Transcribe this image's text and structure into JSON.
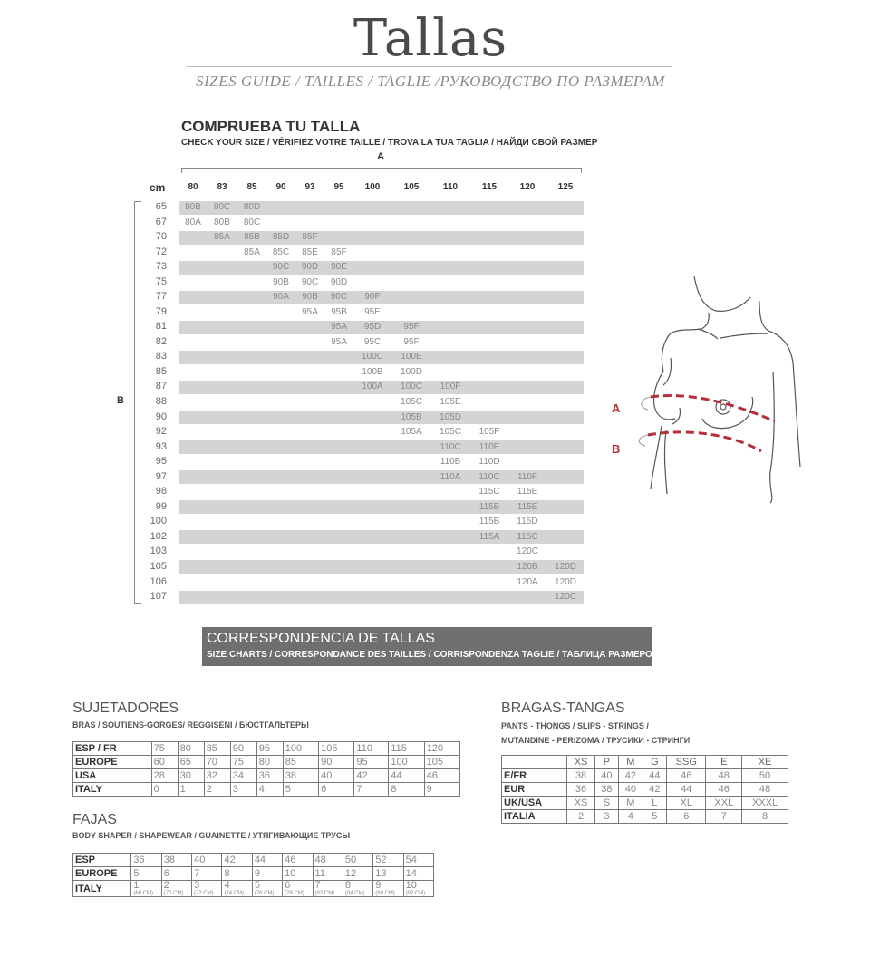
{
  "header": {
    "title": "Tallas",
    "subtitle": "SIZES GUIDE / TAILLES / TAGLIE /РУКОВОДСТВО ПО РАЗМЕРАМ"
  },
  "check_size": {
    "title": "COMPRUEBA TU TALLA",
    "subtitle": "CHECK YOUR SIZE / VÉRIFIEZ VOTRE TAILLE / TROVA LA TUA TAGLIA / НАЙДИ СВОЙ РАЗМЕР",
    "axis_a": "A",
    "axis_b": "B",
    "unit": "cm",
    "columns": [
      "80",
      "83",
      "85",
      "90",
      "93",
      "95",
      "100",
      "105",
      "110",
      "115",
      "120",
      "125"
    ],
    "rows": [
      {
        "b": "65",
        "cells": [
          "80B",
          "80C",
          "80D",
          "",
          "",
          "",
          "",
          "",
          "",
          "",
          "",
          ""
        ]
      },
      {
        "b": "67",
        "cells": [
          "80A",
          "80B",
          "80C",
          "",
          "",
          "",
          "",
          "",
          "",
          "",
          "",
          ""
        ]
      },
      {
        "b": "70",
        "cells": [
          "",
          "85A",
          "85B",
          "85D",
          "85F",
          "",
          "",
          "",
          "",
          "",
          "",
          ""
        ]
      },
      {
        "b": "72",
        "cells": [
          "",
          "",
          "85A",
          "85C",
          "85E",
          "85F",
          "",
          "",
          "",
          "",
          "",
          ""
        ]
      },
      {
        "b": "73",
        "cells": [
          "",
          "",
          "",
          "90C",
          "90D",
          "90E",
          "",
          "",
          "",
          "",
          "",
          ""
        ]
      },
      {
        "b": "75",
        "cells": [
          "",
          "",
          "",
          "90B",
          "90C",
          "90D",
          "",
          "",
          "",
          "",
          "",
          ""
        ]
      },
      {
        "b": "77",
        "cells": [
          "",
          "",
          "",
          "90A",
          "90B",
          "90C",
          "90F",
          "",
          "",
          "",
          "",
          ""
        ]
      },
      {
        "b": "79",
        "cells": [
          "",
          "",
          "",
          "",
          "95A",
          "95B",
          "95E",
          "",
          "",
          "",
          "",
          ""
        ]
      },
      {
        "b": "81",
        "cells": [
          "",
          "",
          "",
          "",
          "",
          "95A",
          "95D",
          "95F",
          "",
          "",
          "",
          ""
        ]
      },
      {
        "b": "82",
        "cells": [
          "",
          "",
          "",
          "",
          "",
          "95A",
          "95C",
          "95F",
          "",
          "",
          "",
          ""
        ]
      },
      {
        "b": "83",
        "cells": [
          "",
          "",
          "",
          "",
          "",
          "",
          "100C",
          "100E",
          "",
          "",
          "",
          ""
        ]
      },
      {
        "b": "85",
        "cells": [
          "",
          "",
          "",
          "",
          "",
          "",
          "100B",
          "100D",
          "",
          "",
          "",
          ""
        ]
      },
      {
        "b": "87",
        "cells": [
          "",
          "",
          "",
          "",
          "",
          "",
          "100A",
          "100C",
          "100F",
          "",
          "",
          ""
        ]
      },
      {
        "b": "88",
        "cells": [
          "",
          "",
          "",
          "",
          "",
          "",
          "",
          "105C",
          "105E",
          "",
          "",
          ""
        ]
      },
      {
        "b": "90",
        "cells": [
          "",
          "",
          "",
          "",
          "",
          "",
          "",
          "105B",
          "105D",
          "",
          "",
          ""
        ]
      },
      {
        "b": "92",
        "cells": [
          "",
          "",
          "",
          "",
          "",
          "",
          "",
          "105A",
          "105C",
          "105F",
          "",
          ""
        ]
      },
      {
        "b": "93",
        "cells": [
          "",
          "",
          "",
          "",
          "",
          "",
          "",
          "",
          "110C",
          "110E",
          "",
          ""
        ]
      },
      {
        "b": "95",
        "cells": [
          "",
          "",
          "",
          "",
          "",
          "",
          "",
          "",
          "110B",
          "110D",
          "",
          ""
        ]
      },
      {
        "b": "97",
        "cells": [
          "",
          "",
          "",
          "",
          "",
          "",
          "",
          "",
          "110A",
          "110C",
          "110F",
          ""
        ]
      },
      {
        "b": "98",
        "cells": [
          "",
          "",
          "",
          "",
          "",
          "",
          "",
          "",
          "",
          "115C",
          "115E",
          ""
        ]
      },
      {
        "b": "99",
        "cells": [
          "",
          "",
          "",
          "",
          "",
          "",
          "",
          "",
          "",
          "115B",
          "115E",
          ""
        ]
      },
      {
        "b": "100",
        "cells": [
          "",
          "",
          "",
          "",
          "",
          "",
          "",
          "",
          "",
          "115B",
          "115D",
          ""
        ]
      },
      {
        "b": "102",
        "cells": [
          "",
          "",
          "",
          "",
          "",
          "",
          "",
          "",
          "",
          "115A",
          "115C",
          ""
        ]
      },
      {
        "b": "103",
        "cells": [
          "",
          "",
          "",
          "",
          "",
          "",
          "",
          "",
          "",
          "",
          "120C",
          ""
        ]
      },
      {
        "b": "105",
        "cells": [
          "",
          "",
          "",
          "",
          "",
          "",
          "",
          "",
          "",
          "",
          "120B",
          "120D"
        ]
      },
      {
        "b": "106",
        "cells": [
          "",
          "",
          "",
          "",
          "",
          "",
          "",
          "",
          "",
          "",
          "120A",
          "120D"
        ]
      },
      {
        "b": "107",
        "cells": [
          "",
          "",
          "",
          "",
          "",
          "",
          "",
          "",
          "",
          "",
          "",
          "120C"
        ]
      }
    ]
  },
  "illustration": {
    "label_a": "A",
    "label_b": "B",
    "line_color": "#b5303a"
  },
  "correspondence": {
    "title": "CORRESPONDENCIA DE TALLAS",
    "subtitle": "SIZE CHARTS / CORRESPONDANCE DES TAILLES / CORRISPONDENZA TAGLIE / ТАБЛИЦА РАЗМЕРОВ",
    "bg_color": "#6f6f72"
  },
  "bras": {
    "title": "SUJETADORES",
    "subtitle": "BRAS / SOUTIENS-GORGES/ REGGISENI / БЮСТГАЛЬТЕРЫ",
    "rows": [
      {
        "label": "ESP / FR",
        "values": [
          "75",
          "80",
          "85",
          "90",
          "95",
          "100",
          "105",
          "110",
          "115",
          "120"
        ]
      },
      {
        "label": "EUROPE",
        "values": [
          "60",
          "65",
          "70",
          "75",
          "80",
          "85",
          "90",
          "95",
          "100",
          "105"
        ]
      },
      {
        "label": "USA",
        "values": [
          "28",
          "30",
          "32",
          "34",
          "36",
          "38",
          "40",
          "42",
          "44",
          "46"
        ]
      },
      {
        "label": "ITALY",
        "values": [
          "0",
          "1",
          "2",
          "3",
          "4",
          "5",
          "6",
          "7",
          "8",
          "9"
        ]
      }
    ]
  },
  "shapers": {
    "title": "FAJAS",
    "subtitle": "BODY SHAPER / SHAPEWEAR / GUAINETTE / УТЯГИВАЮЩИЕ ТРУСЫ",
    "rows": [
      {
        "label": "ESP",
        "values": [
          "36",
          "38",
          "40",
          "42",
          "44",
          "46",
          "48",
          "50",
          "52",
          "54"
        ]
      },
      {
        "label": "EUROPE",
        "values": [
          "5",
          "6",
          "7",
          "8",
          "9",
          "10",
          "11",
          "12",
          "13",
          "14"
        ]
      },
      {
        "label": "ITALY",
        "values": [
          "1",
          "2",
          "3",
          "4",
          "5",
          "6",
          "7",
          "8",
          "9",
          "10"
        ],
        "notes": [
          "(68 CM)",
          "(70 CM)",
          "(72 CM)",
          "(74 CM)",
          "(76 CM)",
          "(78 CM)",
          "(82 CM)",
          "(84 CM)",
          "(88 CM)",
          "(92 CM)"
        ]
      }
    ]
  },
  "pants": {
    "title": "BRAGAS-TANGAS",
    "subtitle_1": "PANTS - THONGS / SLIPS - STRINGS /",
    "subtitle_2": "MUTANDINE - PERIZOMA / ТРУСИКИ - СТРИНГИ",
    "header": [
      "XS",
      "P",
      "M",
      "G",
      "SSG",
      "E",
      "XE"
    ],
    "rows": [
      {
        "label": "E/FR",
        "values": [
          "38",
          "40",
          "42",
          "44",
          "46",
          "48",
          "50"
        ]
      },
      {
        "label": "EUR",
        "values": [
          "36",
          "38",
          "40",
          "42",
          "44",
          "46",
          "48"
        ]
      },
      {
        "label": "UK/USA",
        "values": [
          "XS",
          "S",
          "M",
          "L",
          "XL",
          "XXL",
          "XXXL"
        ]
      },
      {
        "label": "ITALIA",
        "values": [
          "2",
          "3",
          "4",
          "5",
          "6",
          "7",
          "8"
        ]
      }
    ]
  }
}
